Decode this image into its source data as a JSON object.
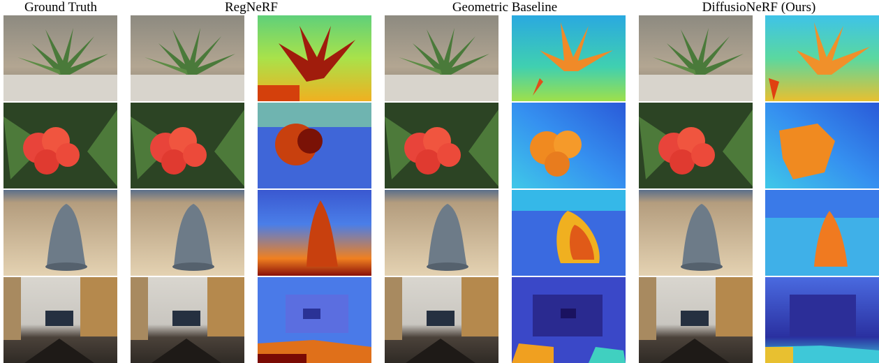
{
  "headers": [
    "Ground Truth",
    "RegNeRF",
    "Geometric Baseline",
    "DiffusioNeRF (Ours)"
  ]
}
